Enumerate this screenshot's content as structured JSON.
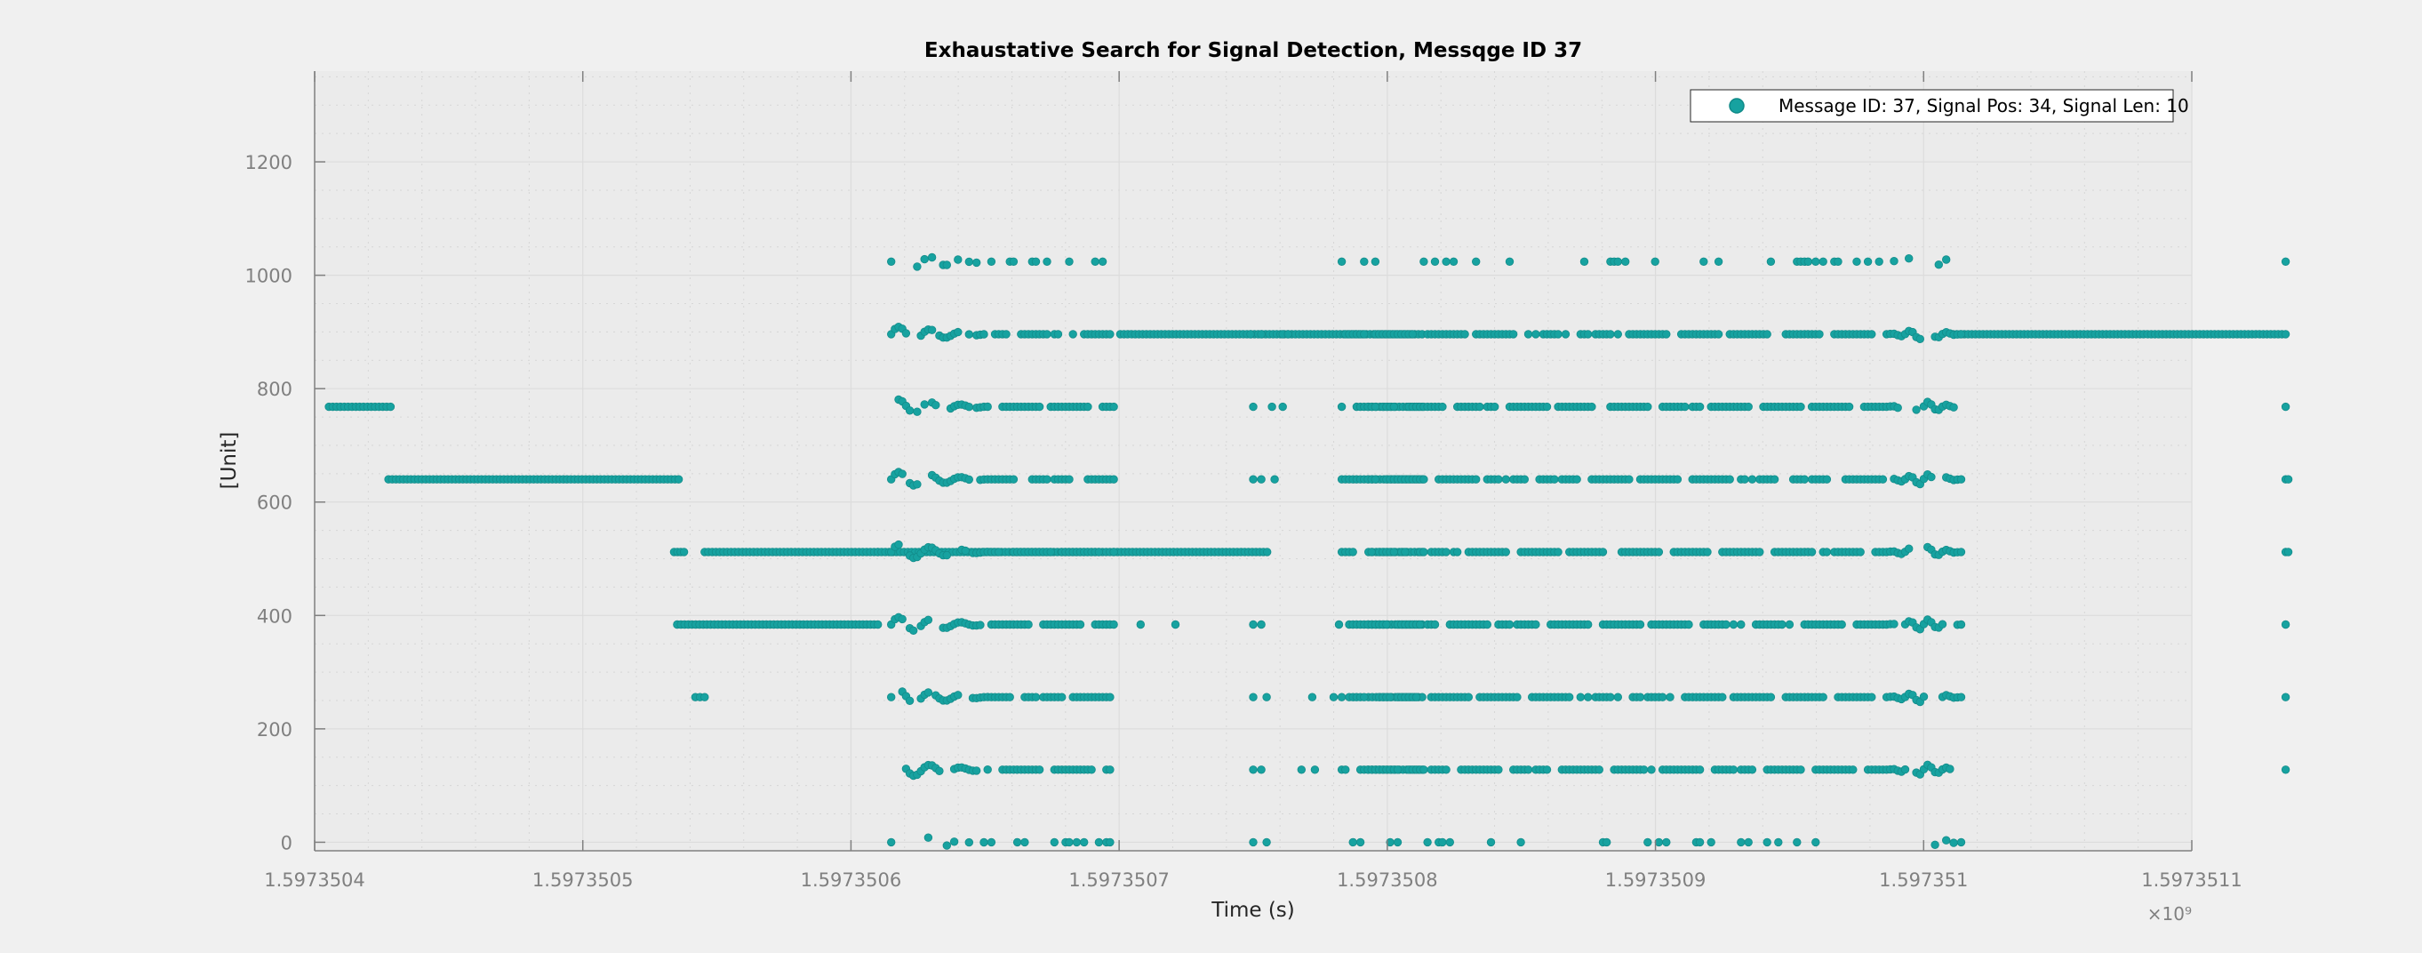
{
  "figure": {
    "background": "#f0f0f0",
    "axes_background": "#ebebeb",
    "series_color": "#17a2a0",
    "axis_color": "#808080"
  },
  "chart_data": {
    "type": "scatter",
    "title": "Exhaustative Search for Signal Detection, Messqge ID 37",
    "xlabel": "Time (s)",
    "ylabel": "[Unit]",
    "x_exponent_label": "×10⁹",
    "x_scale_factor": 1000000000,
    "xlim": [
      1.5973504,
      1.5973511
    ],
    "ylim": [
      -15,
      1360
    ],
    "x_ticks": [
      1.5973504,
      1.5973505,
      1.5973506,
      1.5973507,
      1.5973508,
      1.5973509,
      1.597351,
      1.5973511
    ],
    "x_tick_labels": [
      "1.5973504",
      "1.5973505",
      "1.5973506",
      "1.5973507",
      "1.5973508",
      "1.5973509",
      "1.597351",
      "1.5973511"
    ],
    "y_ticks": [
      0,
      200,
      400,
      600,
      800,
      1000,
      1200
    ],
    "y_tick_labels": [
      "0",
      "200",
      "400",
      "600",
      "800",
      "1000",
      "1200"
    ],
    "grid": true,
    "minor_grid": true,
    "legend_position": "top-right",
    "series": [
      {
        "name": "Message ID: 37, Signal Pos: 34, Signal Len: 10",
        "segments": [
          {
            "y": 768,
            "x_start": 1.59735040533,
            "x_end": 1.59735042829
          },
          {
            "y": 640,
            "x_start": 1.59735042755,
            "x_end": 1.59735053576
          },
          {
            "y": 512,
            "x_start": 1.59735053404,
            "x_end": 1.59735053776
          },
          {
            "y": 512,
            "x_start": 1.59735054544,
            "x_end": 1.59735061002
          },
          {
            "y": 384,
            "x_start": 1.59735053519,
            "x_end": 1.59735061002
          },
          {
            "y": 256,
            "x_start": 1.597350542,
            "x_end": 1.59735054544
          },
          {
            "y": 512,
            "x_start": 1.59735061002,
            "x_end": 1.59735075521
          },
          {
            "y": 896,
            "x_start": 1.59735070043,
            "x_end": 1.597350813
          },
          {
            "y": 768,
            "x_start": 1.597350793,
            "x_end": 1.597350813
          },
          {
            "y": 640,
            "x_start": 1.597350793,
            "x_end": 1.597350813
          },
          {
            "y": 384,
            "x_start": 1.597350793,
            "x_end": 1.597350813
          },
          {
            "y": 512,
            "x_start": 1.597350793,
            "x_end": 1.597350813
          },
          {
            "y": 256,
            "x_start": 1.597350793,
            "x_end": 1.597350813
          },
          {
            "y": 128,
            "x_start": 1.597350793,
            "x_end": 1.597350813
          },
          {
            "y": 896,
            "x_start": 1.597351011,
            "x_end": 1.597351135
          }
        ],
        "bands": {
          "y_levels": [
            0,
            128,
            256,
            384,
            512,
            640,
            768,
            896,
            1024
          ],
          "regions": [
            {
              "x_start": 1.597350615,
              "x_end": 1.597350698
            },
            {
              "x_start": 1.597350783,
              "x_end": 1.597351014
            }
          ]
        },
        "sparse_points": [
          {
            "x": 1.597350708,
            "y": 384
          },
          {
            "x": 1.597350721,
            "y": 384
          },
          {
            "x": 1.597350749,
            "y": 896
          },
          {
            "x": 1.597350753,
            "y": 896
          },
          {
            "x": 1.597350761,
            "y": 896
          },
          {
            "x": 1.597350763,
            "y": 896
          },
          {
            "x": 1.59735075,
            "y": 768
          },
          {
            "x": 1.597350757,
            "y": 768
          },
          {
            "x": 1.597350761,
            "y": 768
          },
          {
            "x": 1.59735075,
            "y": 640
          },
          {
            "x": 1.597350753,
            "y": 640
          },
          {
            "x": 1.597350758,
            "y": 640
          },
          {
            "x": 1.59735075,
            "y": 384
          },
          {
            "x": 1.597350753,
            "y": 384
          },
          {
            "x": 1.597350782,
            "y": 384
          },
          {
            "x": 1.59735075,
            "y": 256
          },
          {
            "x": 1.597350755,
            "y": 256
          },
          {
            "x": 1.597350772,
            "y": 256
          },
          {
            "x": 1.59735078,
            "y": 256
          },
          {
            "x": 1.59735075,
            "y": 128
          },
          {
            "x": 1.597350753,
            "y": 128
          },
          {
            "x": 1.597350768,
            "y": 128
          },
          {
            "x": 1.597350773,
            "y": 128
          },
          {
            "x": 1.59735075,
            "y": 0
          },
          {
            "x": 1.597350755,
            "y": 0
          },
          {
            "x": 1.597351135,
            "y": 1024
          },
          {
            "x": 1.597351135,
            "y": 768
          },
          {
            "x": 1.597351135,
            "y": 640
          },
          {
            "x": 1.597351136,
            "y": 640
          },
          {
            "x": 1.597351135,
            "y": 512
          },
          {
            "x": 1.597351136,
            "y": 512
          },
          {
            "x": 1.597351135,
            "y": 384
          },
          {
            "x": 1.597351135,
            "y": 256
          },
          {
            "x": 1.597351135,
            "y": 128
          }
        ]
      }
    ]
  }
}
